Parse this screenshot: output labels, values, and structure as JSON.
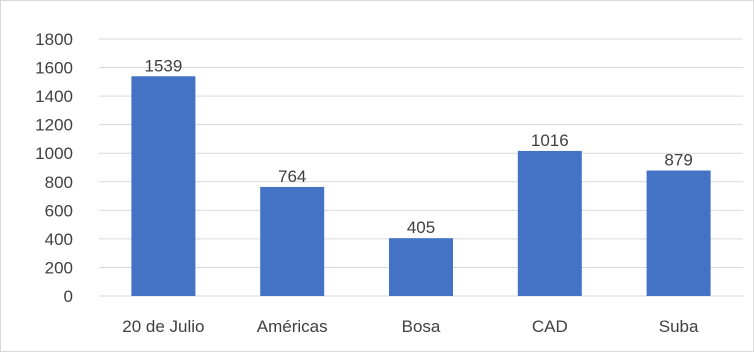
{
  "chart_data": {
    "type": "bar",
    "categories": [
      "20 de Julio",
      "Américas",
      "Bosa",
      "CAD",
      "Suba"
    ],
    "values": [
      1539,
      764,
      405,
      1016,
      879
    ],
    "data_labels": [
      "1539",
      "764",
      "405",
      "1016",
      "879"
    ],
    "ylim": [
      0,
      1800
    ],
    "y_ticks": [
      "0",
      "200",
      "400",
      "600",
      "800",
      "1000",
      "1200",
      "1400",
      "1600",
      "1800"
    ],
    "grid": true,
    "legend": "none",
    "bar_color": "#4472c4",
    "grid_color": "#d9d9d9"
  }
}
